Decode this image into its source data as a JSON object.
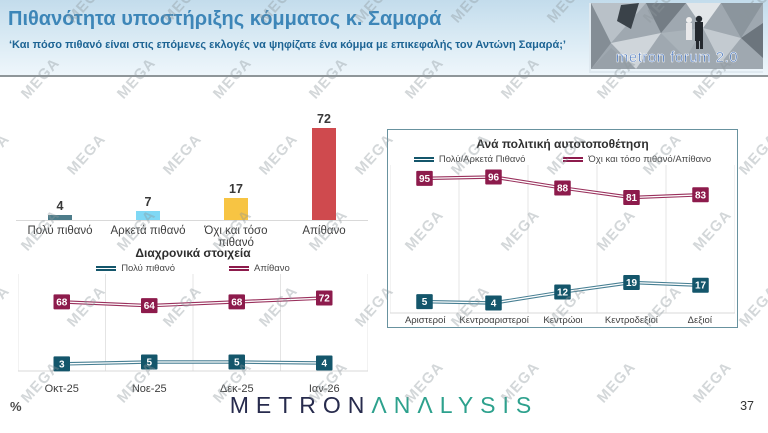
{
  "header": {
    "title": "Πιθανότητα υποστήριξης κόμματος κ. Σαμαρά",
    "subtitle": "‘Και πόσο πιθανό είναι στις επόμενες εκλογές να ψηφίζατε ένα κόμμα με επικεφαλής τον Αντώνη Σαμαρά;’",
    "logo_text": "metron forum 2.0"
  },
  "footer": {
    "percent_label": "%",
    "brand_metron": "METRON",
    "brand_analysis": "ΛNΛLYSIS",
    "page_number": "37"
  },
  "watermark": {
    "text": "MEGA"
  },
  "colors": {
    "title_blue": "#3d86b8",
    "subtitle_blue": "#1d6494",
    "teal_series": "#14566b",
    "maroon_series": "#8d1b4c",
    "right_chart_border": "#68929f"
  },
  "chart_data": [
    {
      "type": "bar",
      "title": "",
      "categories": [
        "Πολύ πιθανό",
        "Αρκετά πιθανό",
        "Όχι και τόσο πιθανό",
        "Απίθανο"
      ],
      "values": [
        4,
        7,
        17,
        72
      ],
      "bar_colors": [
        "#4d7c8a",
        "#7fd8f5",
        "#f7c443",
        "#cf4a4e"
      ],
      "xlabel": "",
      "ylabel": "",
      "ylim": [
        0,
        80
      ],
      "grid": false,
      "data_labels": true
    },
    {
      "type": "line",
      "title": "Διαχρονικά στοιχεία",
      "categories": [
        "Οκτ-25",
        "Νοε-25",
        "Δεκ-25",
        "Ιαν-26"
      ],
      "series": [
        {
          "name": "Πολύ πιθανό",
          "color": "#14566b",
          "line_color": "#477f93",
          "values": [
            3,
            5,
            5,
            4
          ]
        },
        {
          "name": "Απίθανο",
          "color": "#8d1b4c",
          "line_color": "#99305c",
          "values": [
            68,
            64,
            68,
            72
          ]
        }
      ],
      "xlabel": "",
      "ylabel": "",
      "ylim": [
        0,
        85
      ],
      "grid": true,
      "legend_position": "top",
      "data_labels": true
    },
    {
      "type": "line",
      "title": "Ανά πολιτική αυτοτοποθέτηση",
      "categories": [
        "Αριστεροί",
        "Κεντροαριστεροί",
        "Κεντρώοι",
        "Κεντροδεξιοί",
        "Δεξιοί"
      ],
      "series": [
        {
          "name": "Πολύ/Αρκετά Πιθανό",
          "color": "#14566b",
          "line_color": "#477f93",
          "values": [
            5,
            4,
            12,
            19,
            17
          ]
        },
        {
          "name": "Όχι και τόσο πιθανό/Απίθανο",
          "color": "#8d1b4c",
          "line_color": "#99305c",
          "values": [
            95,
            96,
            88,
            81,
            83
          ]
        }
      ],
      "xlabel": "",
      "ylabel": "",
      "ylim": [
        0,
        100
      ],
      "grid": true,
      "legend_position": "top",
      "data_labels": true
    }
  ]
}
